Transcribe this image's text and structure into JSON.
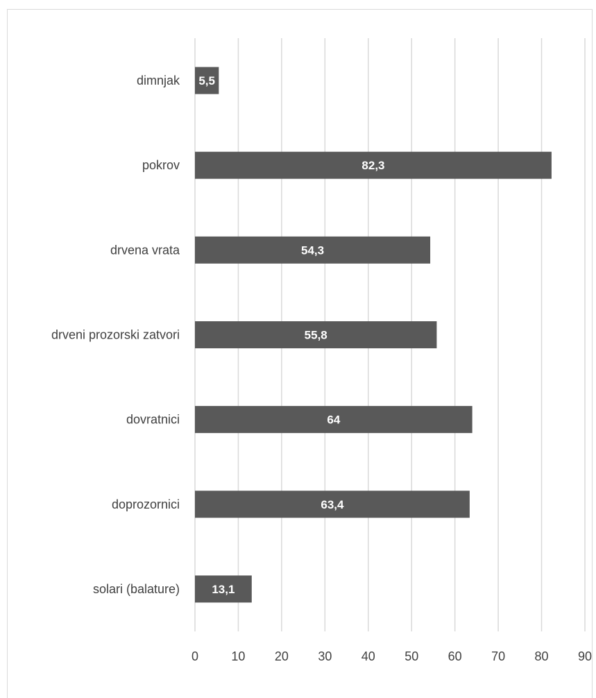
{
  "chart_data": {
    "type": "bar",
    "orientation": "horizontal",
    "categories": [
      "dimnjak",
      "pokrov",
      "drvena vrata",
      "drveni prozorski zatvori",
      "dovratnici",
      "doprozornici",
      "solari (balature)"
    ],
    "values": [
      5.5,
      82.3,
      54.3,
      55.8,
      64,
      63.4,
      13.1
    ],
    "data_labels": [
      "5,5",
      "82,3",
      "54,3",
      "55,8",
      "64",
      "63,4",
      "13,1"
    ],
    "x_ticks": [
      "0",
      "10",
      "20",
      "30",
      "40",
      "50",
      "60",
      "70",
      "80",
      "90"
    ],
    "xlim": [
      0,
      90
    ],
    "grid": "vertical",
    "legend": "none",
    "colors": {
      "bar": "#595959",
      "grid": "#d9d9d9",
      "bar_label": "#ffffff",
      "text": "#404040"
    }
  }
}
